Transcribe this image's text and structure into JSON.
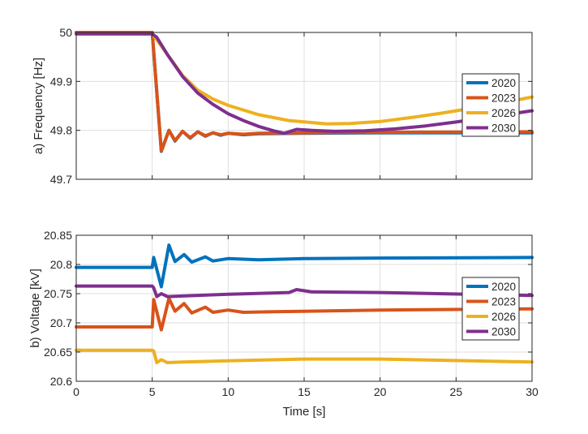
{
  "chart_data": [
    {
      "type": "line",
      "ylabel": "a) Frequency [Hz]",
      "xlabel": "",
      "xlim": [
        0,
        30
      ],
      "ylim": [
        49.7,
        50
      ],
      "xticks": [
        0,
        5,
        10,
        15,
        20,
        25,
        30
      ],
      "xtick_labels_shown": false,
      "yticks": [
        49.7,
        49.8,
        49.9,
        50
      ],
      "ytick_labels": [
        "49.7",
        "49.8",
        "49.9",
        "50"
      ],
      "grid": true,
      "legend": "right",
      "series": [
        {
          "name": "2020",
          "color": "#0072BD",
          "points": [
            [
              0,
              50
            ],
            [
              5,
              50
            ],
            [
              5.6,
              49.757
            ],
            [
              6.1,
              49.8
            ],
            [
              6.5,
              49.778
            ],
            [
              7,
              49.798
            ],
            [
              7.5,
              49.784
            ],
            [
              8,
              49.797
            ],
            [
              8.5,
              49.788
            ],
            [
              9,
              49.795
            ],
            [
              9.5,
              49.79
            ],
            [
              10,
              49.794
            ],
            [
              11,
              49.791
            ],
            [
              12,
              49.793
            ],
            [
              15,
              49.794
            ],
            [
              20,
              49.795
            ],
            [
              30,
              49.795
            ]
          ]
        },
        {
          "name": "2023",
          "color": "#D95319",
          "points": [
            [
              0,
              50
            ],
            [
              5,
              50
            ],
            [
              5.6,
              49.758
            ],
            [
              6.1,
              49.8
            ],
            [
              6.5,
              49.779
            ],
            [
              7,
              49.798
            ],
            [
              7.5,
              49.785
            ],
            [
              8,
              49.797
            ],
            [
              8.5,
              49.789
            ],
            [
              9,
              49.795
            ],
            [
              9.5,
              49.791
            ],
            [
              10,
              49.794
            ],
            [
              11,
              49.792
            ],
            [
              12,
              49.794
            ],
            [
              15,
              49.795
            ],
            [
              20,
              49.796
            ],
            [
              30,
              49.797
            ]
          ]
        },
        {
          "name": "2026",
          "color": "#EDB120",
          "points": [
            [
              0,
              49.997
            ],
            [
              5,
              49.997
            ],
            [
              5.3,
              49.985
            ],
            [
              6,
              49.955
            ],
            [
              7,
              49.912
            ],
            [
              8,
              49.882
            ],
            [
              9,
              49.864
            ],
            [
              10,
              49.851
            ],
            [
              12,
              49.832
            ],
            [
              14,
              49.82
            ],
            [
              16.5,
              49.813
            ],
            [
              18,
              49.814
            ],
            [
              20,
              49.818
            ],
            [
              22,
              49.826
            ],
            [
              24,
              49.835
            ],
            [
              26,
              49.845
            ],
            [
              28,
              49.856
            ],
            [
              30,
              49.868
            ]
          ]
        },
        {
          "name": "2030",
          "color": "#7E2F8E",
          "points": [
            [
              0,
              49.997
            ],
            [
              5,
              49.997
            ],
            [
              5.3,
              49.99
            ],
            [
              6,
              49.955
            ],
            [
              7,
              49.91
            ],
            [
              8,
              49.876
            ],
            [
              9,
              49.853
            ],
            [
              10,
              49.834
            ],
            [
              11,
              49.82
            ],
            [
              12,
              49.808
            ],
            [
              13,
              49.799
            ],
            [
              13.7,
              49.794
            ],
            [
              14.5,
              49.802
            ],
            [
              15.5,
              49.8
            ],
            [
              17,
              49.798
            ],
            [
              19,
              49.799
            ],
            [
              21,
              49.803
            ],
            [
              23,
              49.809
            ],
            [
              25,
              49.817
            ],
            [
              27,
              49.826
            ],
            [
              30,
              49.84
            ]
          ]
        }
      ]
    },
    {
      "type": "line",
      "ylabel": "b) Voltage [kV]",
      "xlabel": "Time [s]",
      "xlim": [
        0,
        30
      ],
      "ylim": [
        20.6,
        20.85
      ],
      "xticks": [
        0,
        5,
        10,
        15,
        20,
        25,
        30
      ],
      "xtick_labels": [
        "0",
        "5",
        "10",
        "15",
        "20",
        "25",
        "30"
      ],
      "yticks": [
        20.6,
        20.65,
        20.7,
        20.75,
        20.8,
        20.85
      ],
      "ytick_labels": [
        "20.6",
        "20.65",
        "20.7",
        "20.75",
        "20.8",
        "20.85"
      ],
      "grid": true,
      "legend": "right",
      "series": [
        {
          "name": "2020",
          "color": "#0072BD",
          "points": [
            [
              0,
              20.795
            ],
            [
              5,
              20.795
            ],
            [
              5.1,
              20.812
            ],
            [
              5.6,
              20.762
            ],
            [
              6.1,
              20.833
            ],
            [
              6.5,
              20.805
            ],
            [
              7.1,
              20.817
            ],
            [
              7.6,
              20.804
            ],
            [
              8.5,
              20.813
            ],
            [
              9,
              20.806
            ],
            [
              10,
              20.81
            ],
            [
              12,
              20.808
            ],
            [
              15,
              20.81
            ],
            [
              20,
              20.811
            ],
            [
              30,
              20.812
            ]
          ]
        },
        {
          "name": "2023",
          "color": "#D95319",
          "points": [
            [
              0,
              20.693
            ],
            [
              5,
              20.693
            ],
            [
              5.1,
              20.74
            ],
            [
              5.6,
              20.688
            ],
            [
              6.1,
              20.742
            ],
            [
              6.5,
              20.72
            ],
            [
              7.1,
              20.733
            ],
            [
              7.6,
              20.717
            ],
            [
              8.5,
              20.727
            ],
            [
              9,
              20.718
            ],
            [
              10,
              20.722
            ],
            [
              11,
              20.718
            ],
            [
              13,
              20.719
            ],
            [
              20,
              20.722
            ],
            [
              30,
              20.724
            ]
          ]
        },
        {
          "name": "2026",
          "color": "#EDB120",
          "points": [
            [
              0,
              20.653
            ],
            [
              5,
              20.653
            ],
            [
              5.1,
              20.652
            ],
            [
              5.3,
              20.632
            ],
            [
              5.6,
              20.637
            ],
            [
              6,
              20.632
            ],
            [
              7,
              20.633
            ],
            [
              10,
              20.635
            ],
            [
              15,
              20.638
            ],
            [
              20,
              20.638
            ],
            [
              30,
              20.633
            ]
          ]
        },
        {
          "name": "2030",
          "color": "#7E2F8E",
          "points": [
            [
              0,
              20.763
            ],
            [
              5,
              20.763
            ],
            [
              5.1,
              20.76
            ],
            [
              5.3,
              20.745
            ],
            [
              5.6,
              20.75
            ],
            [
              6,
              20.745
            ],
            [
              7,
              20.746
            ],
            [
              10,
              20.749
            ],
            [
              14,
              20.752
            ],
            [
              14.5,
              20.757
            ],
            [
              15.5,
              20.753
            ],
            [
              20,
              20.752
            ],
            [
              30,
              20.747
            ]
          ]
        }
      ]
    }
  ]
}
